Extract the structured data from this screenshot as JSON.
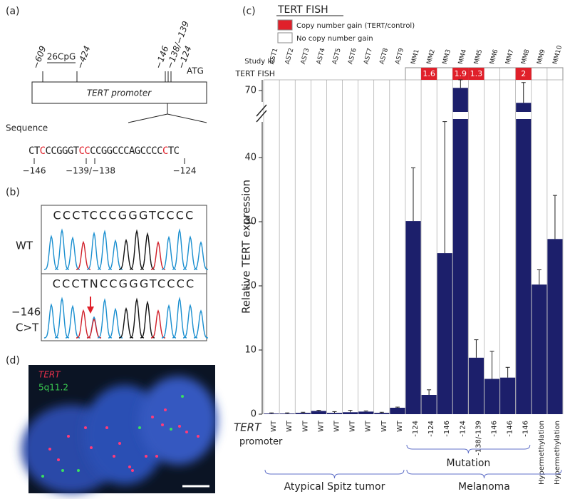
{
  "panel_a": {
    "label": "(a)",
    "sites_left": [
      "−609",
      "26CpG",
      "−424"
    ],
    "sites_right": [
      "−146",
      "−138/−139",
      "−124",
      "ATG"
    ],
    "box_label": "TERT promoter",
    "sequence_label": "Sequence",
    "sequence": [
      "CT",
      "C",
      "CCGGGT",
      "CC",
      "CCGGCCCAGCCCC",
      "C",
      "TC"
    ],
    "sequence_sites": [
      "−146",
      "−139/−138",
      "−124"
    ]
  },
  "panel_b": {
    "label": "(b)",
    "reads": [
      "CCCTCCCGGGTCCCC",
      "CCCTNCCGGGTCCCC"
    ],
    "row_wt": "WT",
    "row_mut": [
      "−146",
      "C>T"
    ]
  },
  "panel_d": {
    "label": "(d)",
    "probes": [
      "TERT",
      "5q11.2"
    ]
  },
  "chart_data": {
    "type": "bar",
    "label": "(c)",
    "legend_title": "TERT FISH",
    "legend": [
      "Copy number gain (TERT/control)",
      "No copy number gain"
    ],
    "study_id_label": "Study ID",
    "fish_label": "TERT FISH",
    "promoter_label": [
      "TERT",
      "promoter"
    ],
    "ylabel": "Relative TERT expression",
    "categories": [
      "AST1",
      "AST2",
      "AST3",
      "AST4",
      "AST5",
      "AST6",
      "AST7",
      "AST8",
      "AST9",
      "MM1",
      "MM2",
      "MM3",
      "MM4",
      "MM5",
      "MM6",
      "MM7",
      "MM8",
      "MM9",
      "MM10"
    ],
    "values": [
      0.1,
      0.1,
      0.2,
      0.5,
      0.2,
      0.3,
      0.4,
      0.2,
      1.0,
      30.1,
      3.0,
      25.1,
      70.5,
      8.8,
      5.5,
      5.7,
      67.7,
      20.2,
      27.3
    ],
    "errors": [
      0.1,
      0.1,
      0.1,
      0.1,
      0.2,
      0.3,
      0.1,
      0.1,
      0.1,
      8.3,
      0.8,
      20.5,
      1.5,
      2.8,
      4.3,
      1.6,
      3.8,
      2.3,
      6.8
    ],
    "fish": [
      null,
      null,
      null,
      null,
      null,
      null,
      null,
      null,
      null,
      null,
      1.6,
      null,
      1.9,
      1.3,
      null,
      null,
      2,
      null,
      null
    ],
    "promoter": [
      "WT",
      "WT",
      "WT",
      "WT",
      "WT",
      "WT",
      "WT",
      "WT",
      "WT",
      "-124",
      "-124",
      "-146",
      "-124",
      "-138/-139",
      "-146",
      "-146",
      "-146",
      "Hypermethylation",
      "Hypermethylation"
    ],
    "groups": [
      "Mutation",
      "Atypical Spitz tumor",
      "Melanoma"
    ],
    "color": "#1c1f6b",
    "fish_color": "#e0202a",
    "ylim": [
      0,
      72
    ],
    "ybreak": [
      46,
      66
    ],
    "yticks": [
      0,
      10,
      20,
      30,
      40,
      70
    ]
  }
}
